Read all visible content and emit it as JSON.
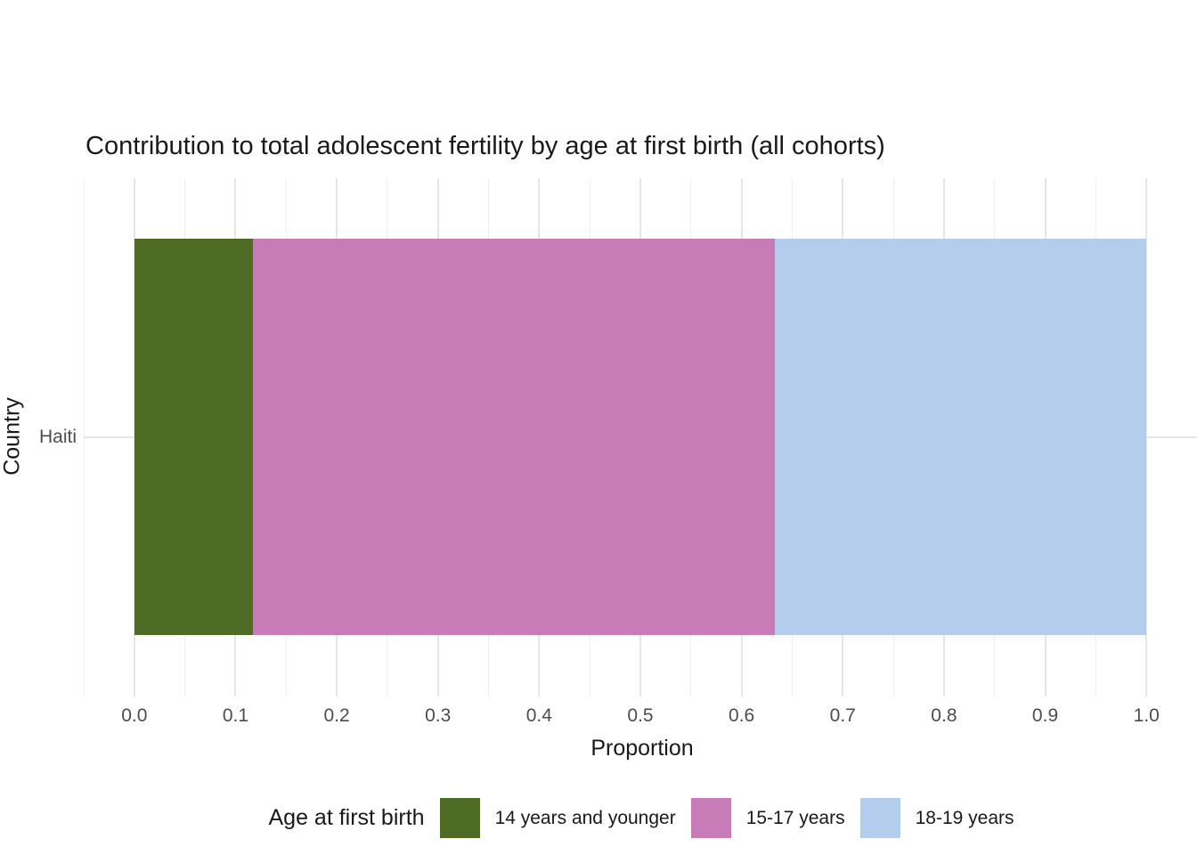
{
  "chart_data": {
    "type": "bar",
    "orientation": "horizontal",
    "stacked": true,
    "title": "Contribution to total adolescent fertility by age at first birth (all cohorts)",
    "xlabel": "Proportion",
    "ylabel": "Country",
    "categories": [
      "Haiti"
    ],
    "series": [
      {
        "name": "14 years and younger",
        "values": [
          0.117
        ],
        "color": "#4D6B23"
      },
      {
        "name": "15-17 years",
        "values": [
          0.516
        ],
        "color": "#C77CB7"
      },
      {
        "name": "18-19 years",
        "values": [
          0.367
        ],
        "color": "#B5CDEC"
      }
    ],
    "xlim": [
      -0.05,
      1.05
    ],
    "x_ticks": [
      0.0,
      0.1,
      0.2,
      0.3,
      0.4,
      0.5,
      0.6,
      0.7,
      0.8,
      0.9,
      1.0
    ],
    "x_tick_labels": [
      "0.0",
      "0.1",
      "0.2",
      "0.3",
      "0.4",
      "0.5",
      "0.6",
      "0.7",
      "0.8",
      "0.9",
      "1.0"
    ],
    "x_minor_ticks": [
      -0.05,
      0.05,
      0.15,
      0.25,
      0.35,
      0.45,
      0.55,
      0.65,
      0.75,
      0.85,
      0.95,
      1.05
    ],
    "grid": "vertical major+minor, horizontal major at category; light gray on white",
    "legend_title": "Age at first birth",
    "legend_position": "bottom"
  }
}
